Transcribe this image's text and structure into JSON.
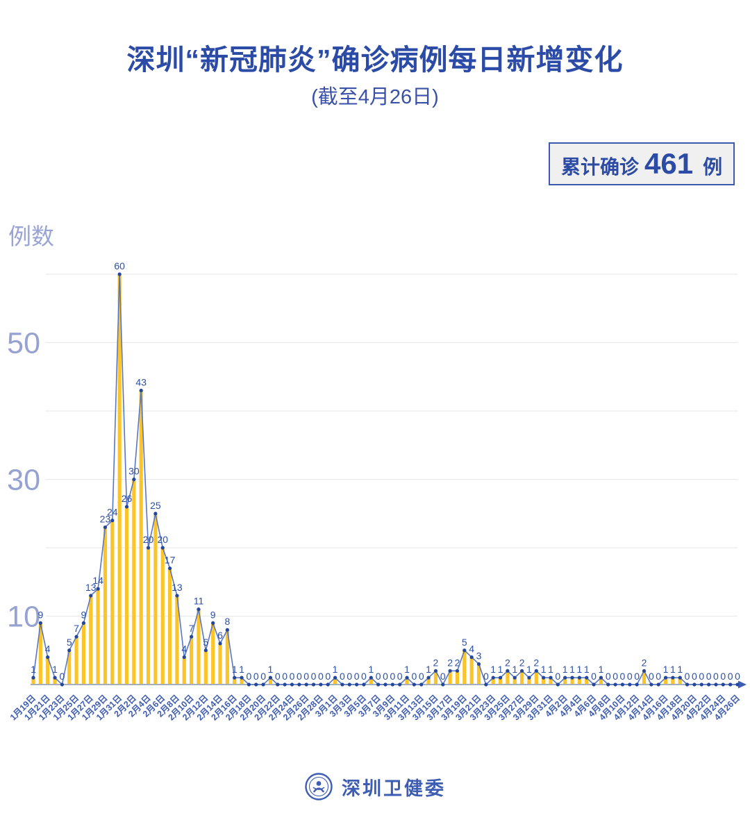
{
  "header": {
    "title": "深圳“新冠肺炎”确诊病例每日新增变化",
    "subtitle": "(截至4月26日)"
  },
  "summary_badge": {
    "label": "累计确诊",
    "value": "461",
    "unit": "例"
  },
  "footer": {
    "org_name": "深圳卫健委",
    "logo": "shenzhen-health-commission-emblem"
  },
  "colors": {
    "title_blue": "#2B4BA6",
    "bar_yellow": "#FAC42A",
    "line_blue": "#5877C2",
    "marker_blue": "#24479E",
    "value_label_blue": "#2B4FA5",
    "x_label_blue": "#3D5CB3",
    "y_label_periwinkle": "#96A2D2",
    "gridline_gray": "#E9E9EB",
    "axis_gray": "#A6ADBC",
    "badge_bg": "#F0F0F0"
  },
  "chart_data": {
    "type": "bar",
    "overlay": "line-with-markers",
    "title": "深圳“新冠肺炎”确诊病例每日新增变化",
    "subtitle": "(截至4月26日)",
    "xlabel": "",
    "ylabel": "例数",
    "ylim": [
      0,
      62
    ],
    "y_tick_labels": [
      10,
      30,
      50
    ],
    "gridline_values": [
      10,
      20,
      30,
      40,
      50,
      60
    ],
    "grid": "horizontal",
    "legend": "none",
    "data_labels_shown": true,
    "x_tick_every": 2,
    "x_tick_labels": [
      "1月19日",
      "1月21日",
      "1月23日",
      "1月25日",
      "1月27日",
      "1月29日",
      "1月31日",
      "2月2日",
      "2月4日",
      "2月6日",
      "2月8日",
      "2月10日",
      "2月12日",
      "2月14日",
      "2月16日",
      "2月18日",
      "2月20日",
      "2月22日",
      "2月24日",
      "2月26日",
      "2月28日",
      "3月1日",
      "3月3日",
      "3月5日",
      "3月7日",
      "3月9日",
      "3月11日",
      "3月13日",
      "3月15日",
      "3月17日",
      "3月19日",
      "3月21日",
      "3月23日",
      "3月25日",
      "3月27日",
      "3月29日",
      "3月31日",
      "4月2日",
      "4月4日",
      "4月6日",
      "4月8日",
      "4月10日",
      "4月12日",
      "4月14日",
      "4月16日",
      "4月18日",
      "4月20日",
      "4月22日",
      "4月24日",
      "4月26日"
    ],
    "values": [
      1,
      9,
      4,
      1,
      0,
      5,
      7,
      9,
      13,
      14,
      23,
      24,
      60,
      26,
      30,
      43,
      20,
      25,
      20,
      17,
      13,
      4,
      7,
      11,
      5,
      9,
      6,
      8,
      1,
      1,
      0,
      0,
      0,
      1,
      0,
      0,
      0,
      0,
      0,
      0,
      0,
      0,
      1,
      0,
      0,
      0,
      0,
      1,
      0,
      0,
      0,
      0,
      1,
      0,
      0,
      1,
      2,
      0,
      2,
      2,
      5,
      4,
      3,
      0,
      1,
      1,
      2,
      1,
      2,
      1,
      2,
      1,
      1,
      0,
      1,
      1,
      1,
      1,
      0,
      1,
      0,
      0,
      0,
      0,
      0,
      2,
      0,
      0,
      1,
      1,
      1,
      0,
      0,
      0,
      0,
      0,
      0,
      0,
      0
    ]
  }
}
